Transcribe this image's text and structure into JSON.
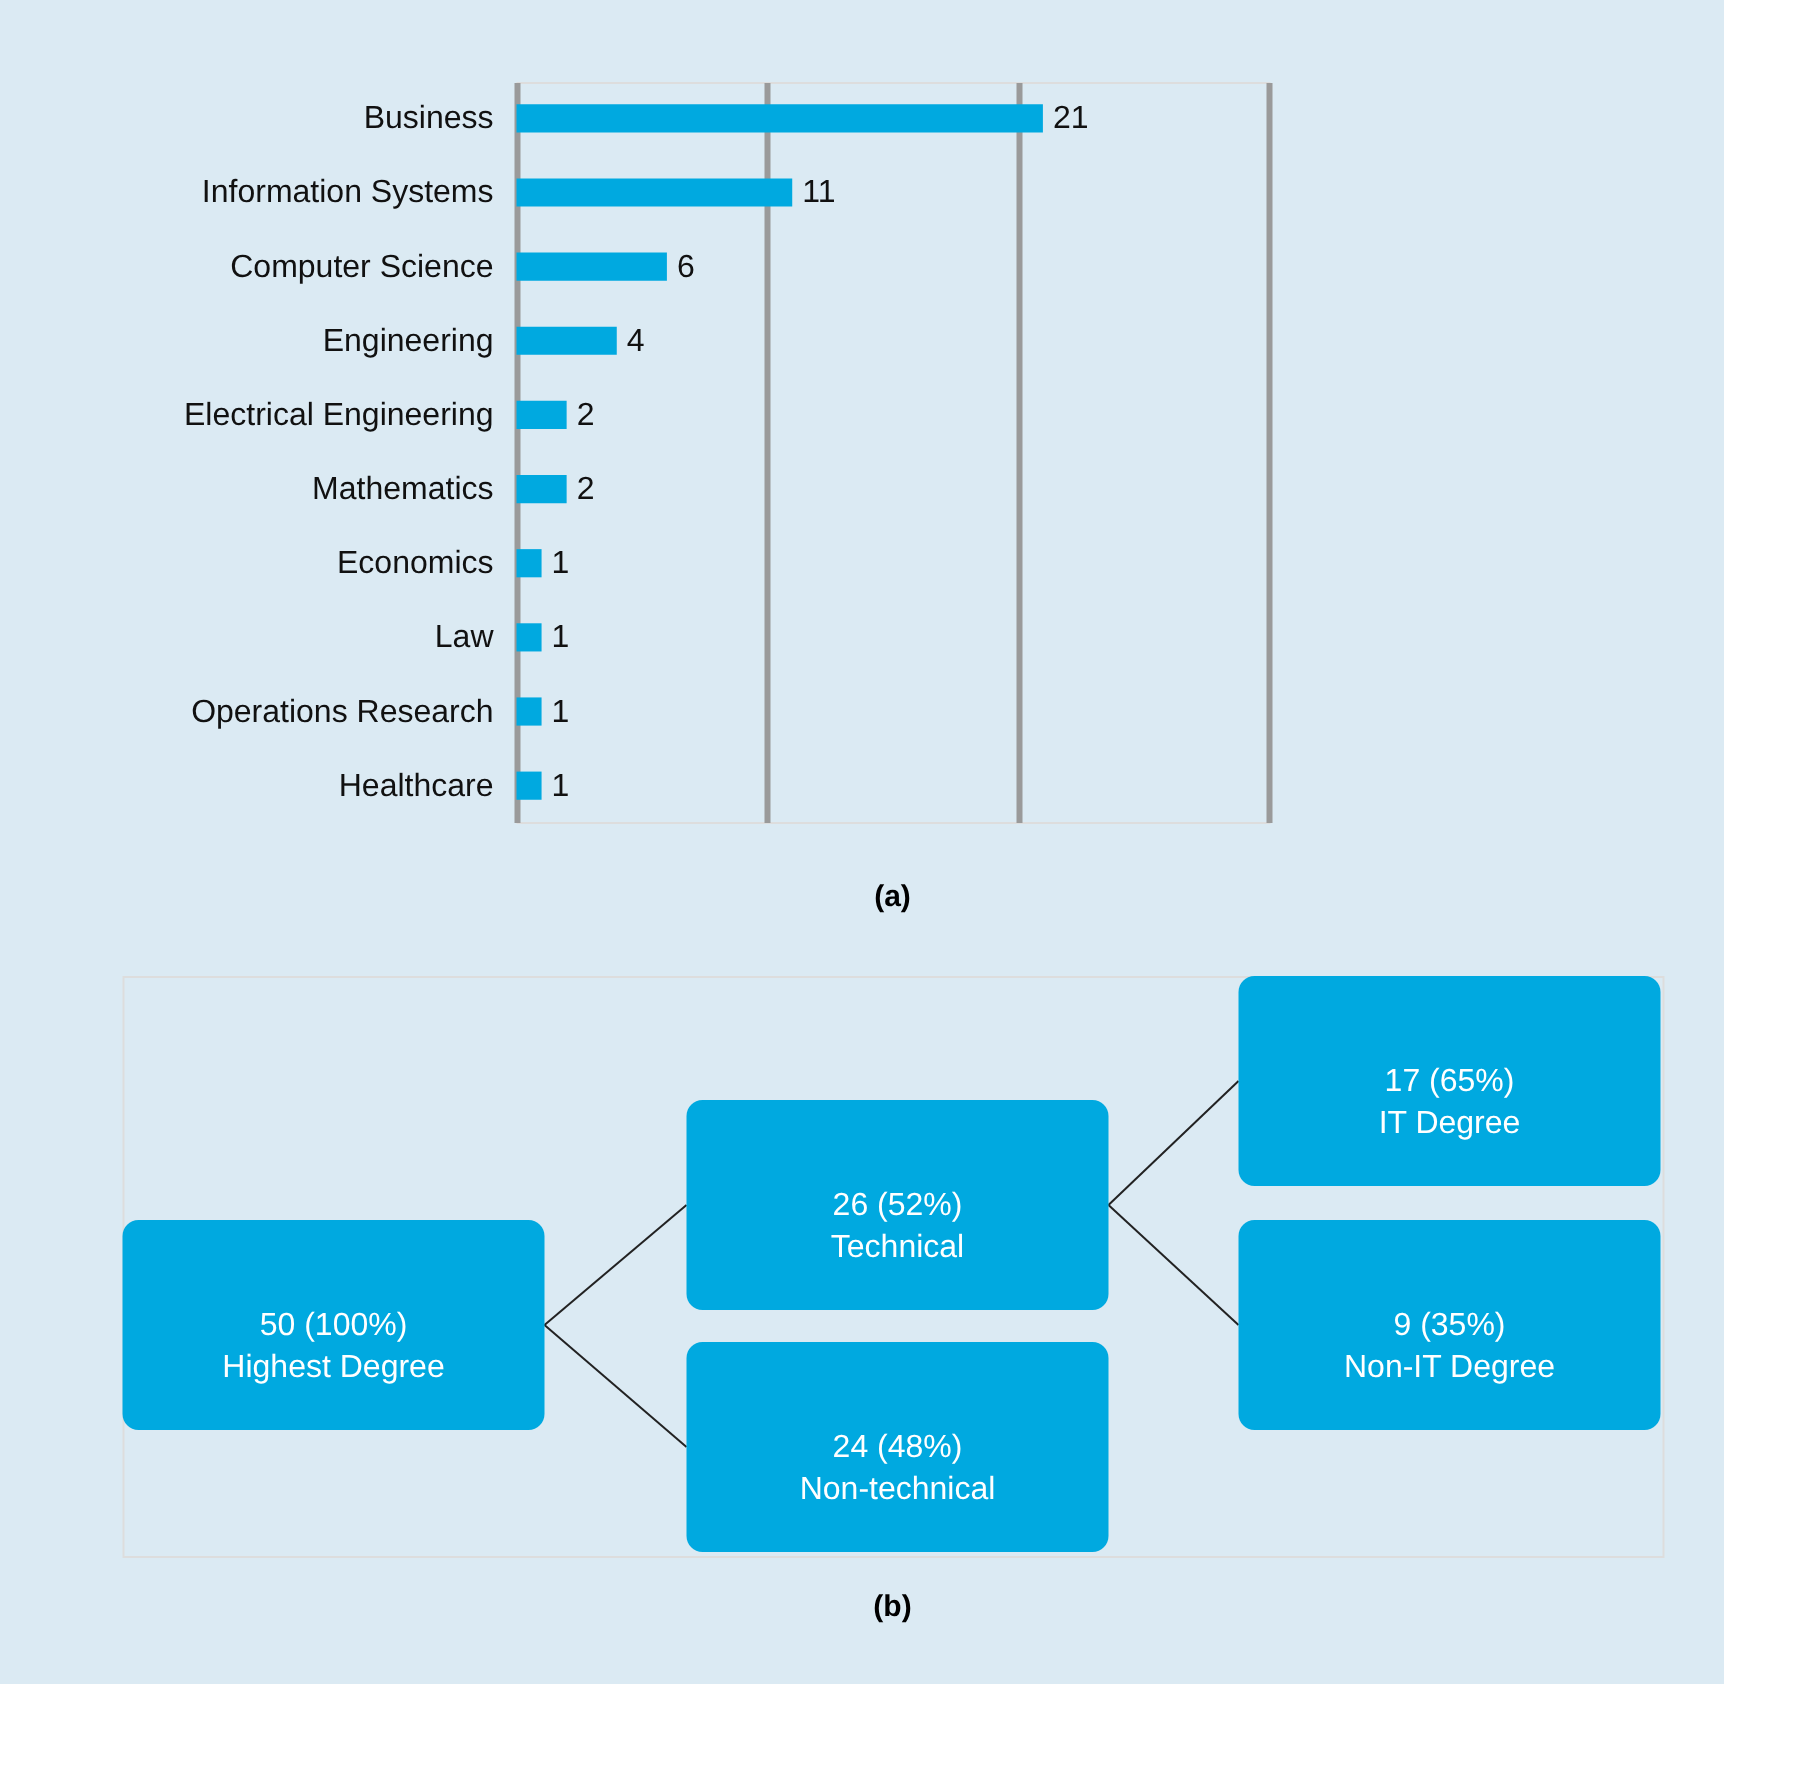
{
  "chart_data": [
    {
      "type": "bar",
      "orientation": "horizontal",
      "title": "(a)",
      "categories": [
        "Business",
        "Information Systems",
        "Computer Science",
        "Engineering",
        "Electrical Engineering",
        "Mathematics",
        "Economics",
        "Law",
        "Operations Research",
        "Healthcare"
      ],
      "values": [
        21,
        11,
        6,
        4,
        2,
        2,
        1,
        1,
        1,
        1
      ],
      "color": "#00a9e0",
      "xlim": [
        0,
        30
      ],
      "xticks": [
        {
          "value": 0,
          "label": null
        },
        {
          "value": 10,
          "label": null
        },
        {
          "value": 20,
          "label": null
        },
        {
          "value": 30,
          "label": null
        }
      ],
      "grid": "x",
      "data_labels": true,
      "tick_labels": "y"
    },
    {
      "type": "other",
      "title": "(b)",
      "color": "#00a9e0",
      "annotations": [
        "50 (100%)\nHighest Degree",
        "26 (52%)\nTechnical",
        "24 (48%)\nNon-technical",
        "17 (65%)\nIT Degree",
        "9 (35%)\nNon-IT Degree"
      ]
    }
  ]
}
